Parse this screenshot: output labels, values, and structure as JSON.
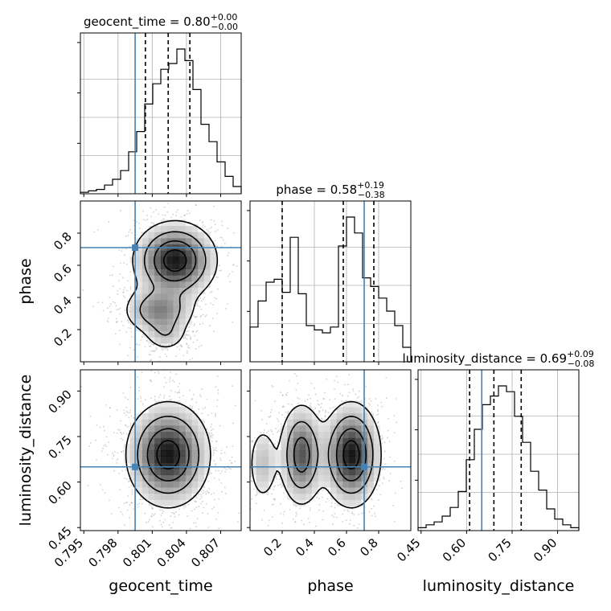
{
  "chart_data": {
    "type": "corner",
    "parameters": [
      "geocent_time",
      "phase",
      "luminosity_distance"
    ],
    "titles": [
      {
        "param": "geocent_time",
        "label": "geocent_time = 0.80",
        "plus": "+0.00",
        "minus": "−0.00"
      },
      {
        "param": "phase",
        "label": "phase = 0.58",
        "plus": "+0.19",
        "minus": "−0.38"
      },
      {
        "param": "luminosity_distance",
        "label": "luminosity_distance = 0.69",
        "plus": "+0.09",
        "minus": "−0.08"
      }
    ],
    "ranges": {
      "geocent_time": [
        0.7947,
        0.8088
      ],
      "phase": [
        0.0,
        1.0
      ],
      "luminosity_distance": [
        0.44,
        0.97
      ]
    },
    "ticks": {
      "geocent_time": [
        "0.795",
        "0.798",
        "0.801",
        "0.804",
        "0.807"
      ],
      "phase": [
        "0.2",
        "0.4",
        "0.6",
        "0.8"
      ],
      "luminosity_distance_y": [
        "0.45",
        "0.60",
        "0.75",
        "0.90"
      ],
      "luminosity_distance_x": [
        "0.45",
        "0.60",
        "0.75",
        "0.90"
      ]
    },
    "truths": {
      "geocent_time": 0.7995,
      "phase": 0.71,
      "luminosity_distance": 0.65
    },
    "quantiles": {
      "geocent_time": [
        0.8004,
        0.8024,
        0.8043
      ],
      "phase": [
        0.2,
        0.58,
        0.77
      ],
      "luminosity_distance": [
        0.61,
        0.69,
        0.78
      ]
    },
    "histograms": {
      "geocent_time": {
        "edges_start": 0.7947,
        "bin_width": 0.000705,
        "counts": [
          0.01,
          0.02,
          0.03,
          0.06,
          0.1,
          0.16,
          0.29,
          0.43,
          0.62,
          0.76,
          0.86,
          0.9,
          1.0,
          0.92,
          0.72,
          0.48,
          0.36,
          0.22,
          0.12,
          0.05
        ]
      },
      "phase": {
        "edges_start": 0.0,
        "bin_width": 0.05,
        "counts": [
          0.24,
          0.42,
          0.55,
          0.57,
          0.48,
          0.86,
          0.47,
          0.25,
          0.22,
          0.2,
          0.24,
          0.8,
          1.0,
          0.89,
          0.58,
          0.52,
          0.44,
          0.35,
          0.25,
          0.1
        ]
      },
      "luminosity_distance": {
        "edges_start": 0.44,
        "bin_width": 0.0265,
        "counts": [
          0.02,
          0.04,
          0.06,
          0.1,
          0.16,
          0.27,
          0.49,
          0.7,
          0.87,
          0.93,
          1.0,
          0.96,
          0.79,
          0.61,
          0.41,
          0.28,
          0.15,
          0.08,
          0.04,
          0.02
        ]
      }
    },
    "density": {
      "phase_vs_geocent_time": {
        "modes": [
          {
            "x": 0.803,
            "y": 0.63,
            "sx": 0.0018,
            "sy": 0.12,
            "w": 1.0
          },
          {
            "x": 0.8016,
            "y": 0.32,
            "sx": 0.0016,
            "sy": 0.08,
            "w": 0.55
          },
          {
            "x": 0.8022,
            "y": 0.17,
            "sx": 0.001,
            "sy": 0.06,
            "w": 0.25
          }
        ]
      },
      "luminosity_distance_vs_geocent_time": {
        "modes": [
          {
            "x": 0.8024,
            "y": 0.69,
            "sx": 0.0018,
            "sy": 0.085,
            "w": 1.0
          }
        ]
      },
      "luminosity_distance_vs_phase": {
        "modes": [
          {
            "x": 0.63,
            "y": 0.69,
            "sx": 0.09,
            "sy": 0.085,
            "w": 1.0
          },
          {
            "x": 0.32,
            "y": 0.69,
            "sx": 0.07,
            "sy": 0.085,
            "w": 0.75
          },
          {
            "x": 0.08,
            "y": 0.66,
            "sx": 0.05,
            "sy": 0.07,
            "w": 0.3
          }
        ]
      }
    }
  }
}
